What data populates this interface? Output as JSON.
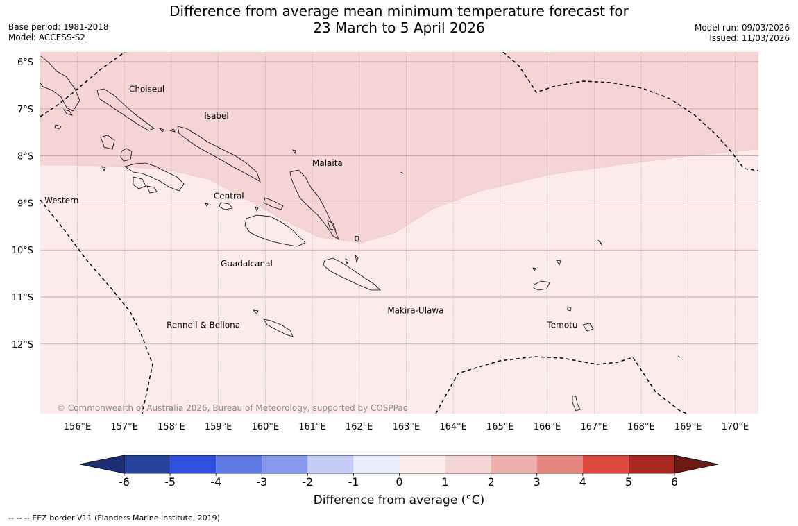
{
  "title_line1": "Difference from average mean minimum temperature forecast for",
  "title_line2": "23 March to 5 April 2026",
  "base_period": "Base period: 1981-2018",
  "model": "Model: ACCESS-S2",
  "model_run": "Model run: 09/03/2026",
  "issued": "Issued: 11/03/2026",
  "copyright": "© Commonwealth of Australia 2026, Bureau of Meteorology, supported by COSPPac",
  "colorbar_label": "Difference from average (°C)",
  "footnote": "--  --  -- EEZ border V11 (Flanders Marine Institute, 2019).",
  "lat_labels": [
    "6°S",
    "7°S",
    "8°S",
    "9°S",
    "10°S",
    "11°S",
    "12°S"
  ],
  "lon_labels": [
    "156°E",
    "157°E",
    "158°E",
    "159°E",
    "160°E",
    "161°E",
    "162°E",
    "163°E",
    "164°E",
    "165°E",
    "166°E",
    "167°E",
    "168°E",
    "169°E",
    "170°E"
  ],
  "provinces": [
    {
      "name": "Choiseul",
      "lon": 157.1,
      "lat": -6.64
    },
    {
      "name": "Isabel",
      "lon": 158.7,
      "lat": -7.21
    },
    {
      "name": "Malaita",
      "lon": 161.0,
      "lat": -8.21
    },
    {
      "name": "Western",
      "lon": 155.3,
      "lat": -9.01
    },
    {
      "name": "Central",
      "lon": 158.9,
      "lat": -8.91
    },
    {
      "name": "Guadalcanal",
      "lon": 159.05,
      "lat": -10.35
    },
    {
      "name": "Makira-Ulawa",
      "lon": 162.6,
      "lat": -11.35
    },
    {
      "name": "Rennell & Bellona",
      "lon": 157.9,
      "lat": -11.66
    },
    {
      "name": "Temotu",
      "lon": 166.0,
      "lat": -11.66
    }
  ],
  "colorbar": {
    "ticks": [
      "-6",
      "-5",
      "-4",
      "-3",
      "-2",
      "-1",
      "0",
      "1",
      "2",
      "3",
      "4",
      "5",
      "6"
    ],
    "colors": [
      "#27419f",
      "#3150df",
      "#5e78e4",
      "#8799ec",
      "#c3cbf6",
      "#eaeefc",
      "#fcebea",
      "#f5d4d4",
      "#edafab",
      "#e5867e",
      "#dc4a3f",
      "#a8281f"
    ],
    "under_color": "#1d2f74",
    "over_color": "#6e1a14"
  },
  "anomaly_fill": {
    "zero_to_one": "#fcebea",
    "one_to_two": "#f5d4d4"
  }
}
